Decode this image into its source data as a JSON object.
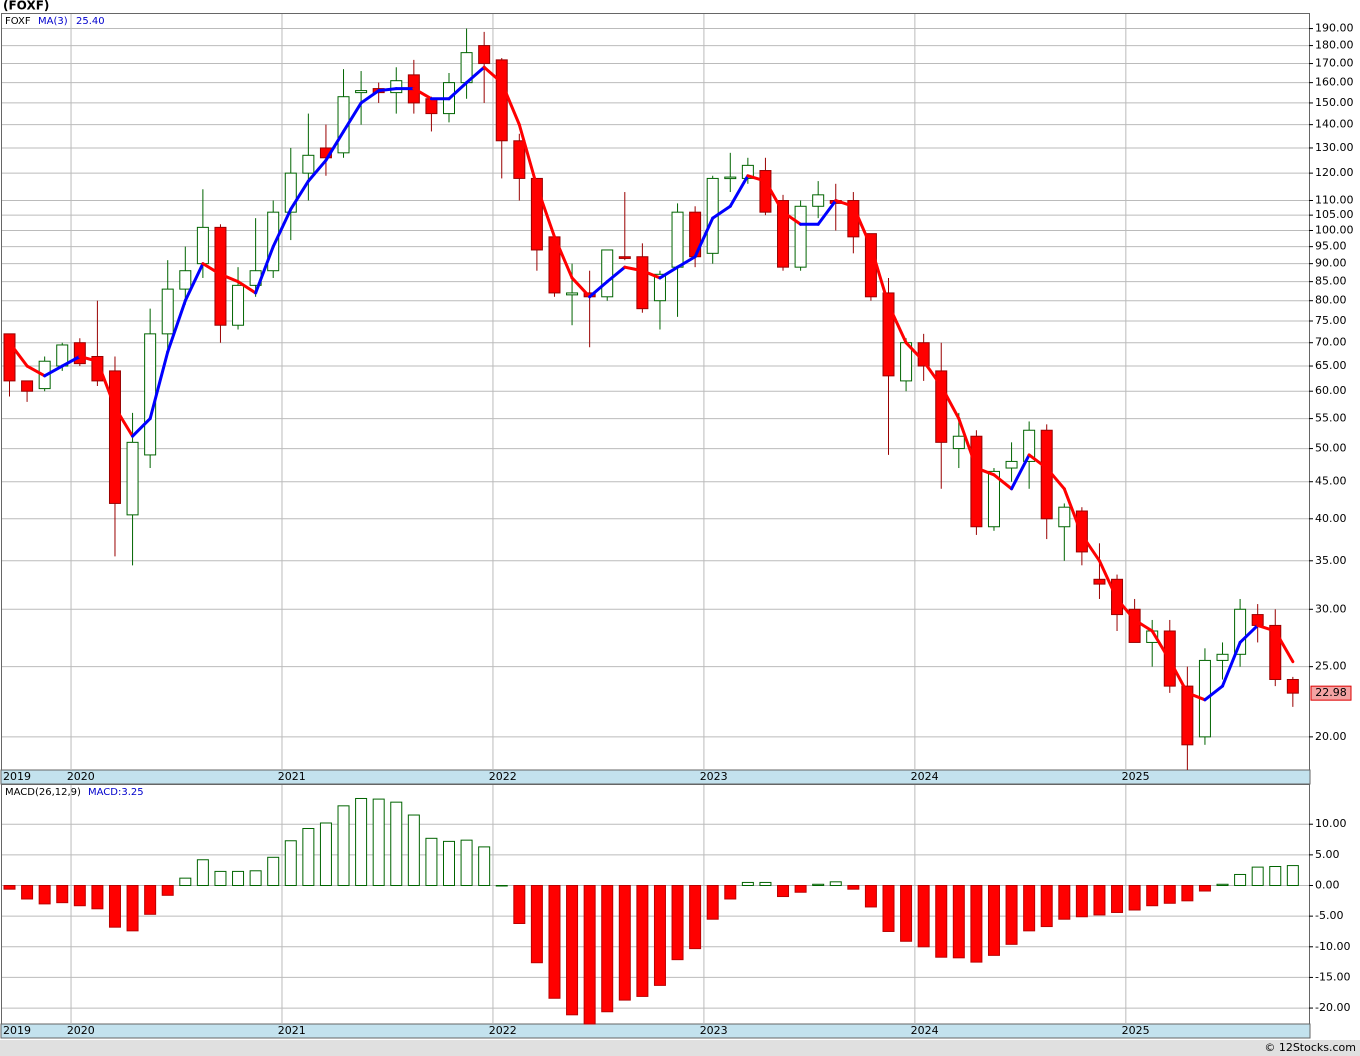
{
  "chart_data": [
    {
      "type": "candlestick",
      "title": "(FOXF)",
      "legend": "FOXF",
      "categories": [
        "2019",
        null,
        null,
        null,
        "2020",
        null,
        null,
        null,
        null,
        null,
        null,
        null,
        null,
        null,
        null,
        null,
        "2021",
        null,
        null,
        null,
        null,
        null,
        null,
        null,
        null,
        null,
        null,
        null,
        "2022",
        null,
        null,
        null,
        null,
        null,
        null,
        null,
        null,
        null,
        null,
        null,
        "2023",
        null,
        null,
        null,
        null,
        null,
        null,
        null,
        null,
        null,
        null,
        null,
        "2024",
        null,
        null,
        null,
        null,
        null,
        null,
        null,
        null,
        null,
        null,
        null,
        "2025",
        null,
        null,
        null,
        null,
        null,
        null,
        null,
        null,
        null
      ],
      "open": [
        72,
        62,
        60.5,
        65,
        70,
        67,
        64,
        40.5,
        49,
        72,
        83,
        90,
        101,
        74,
        84,
        88,
        106,
        120,
        130,
        128,
        155,
        157,
        155,
        164,
        152,
        145,
        160,
        180,
        172,
        133,
        118,
        98,
        81.5,
        82,
        81,
        92,
        92,
        80,
        89,
        106,
        93,
        118,
        118,
        121,
        110,
        89,
        108,
        110,
        110,
        99,
        82,
        62,
        70,
        64,
        50,
        52,
        39,
        47,
        48,
        53,
        39,
        41,
        33,
        33,
        30,
        27,
        28,
        23.5,
        20,
        25.5,
        26,
        29.5,
        28.5,
        24
      ],
      "high": [
        72,
        62,
        67,
        70,
        71,
        80,
        67,
        56,
        78,
        91,
        95,
        114,
        102,
        89,
        104,
        110,
        130,
        145,
        140,
        167,
        166,
        160,
        168,
        172,
        153,
        165,
        190,
        188,
        173,
        136,
        118,
        99,
        90,
        88,
        94,
        113,
        96,
        88,
        109,
        108,
        119,
        128,
        126,
        126,
        112,
        110,
        117,
        116,
        113,
        99,
        86,
        71,
        72,
        70,
        56,
        53,
        47,
        51,
        54.5,
        54,
        42,
        41.5,
        37,
        33.5,
        31,
        29,
        29,
        25,
        26.5,
        27,
        31,
        30.5,
        30,
        24.2
      ],
      "low": [
        59,
        58,
        60,
        64,
        65,
        61,
        35.5,
        34.5,
        47,
        68,
        79,
        86,
        70,
        73,
        81,
        86,
        97,
        110,
        119,
        126,
        140,
        150,
        145,
        145,
        137,
        141,
        152,
        150,
        118,
        110,
        88,
        81,
        74,
        69,
        80,
        91,
        77,
        73,
        76,
        89,
        90,
        113,
        116,
        105,
        88,
        88,
        104,
        100,
        93,
        80,
        49,
        60,
        62,
        44,
        47,
        38,
        38.5,
        45,
        44,
        37.5,
        35,
        34.5,
        31,
        28,
        27,
        25,
        23,
        18,
        19.5,
        24,
        25,
        27,
        23.5,
        22
      ],
      "close": [
        62,
        60,
        66,
        69.5,
        65.5,
        62,
        42,
        51,
        72,
        83,
        88,
        101,
        74,
        84,
        88,
        106,
        120,
        127,
        126,
        153,
        156,
        155,
        161,
        150,
        145,
        160,
        176,
        170,
        133,
        118,
        94,
        82,
        82,
        81,
        94,
        91.5,
        78,
        87,
        106,
        92,
        118,
        118.5,
        123,
        106,
        89,
        108,
        112,
        109,
        98,
        81,
        63,
        70,
        65,
        51,
        52,
        39,
        46.5,
        48,
        53,
        40,
        41.5,
        36,
        32.5,
        29.5,
        27,
        28,
        23.5,
        19.5,
        25.5,
        26,
        30,
        28.5,
        24,
        22.98
      ],
      "up_color": "#006400",
      "down_color": "#ff0000",
      "ma": {
        "name": "MA(3)",
        "label": "25.40",
        "up_color": "#0000ff",
        "down_color": "#ff0000",
        "values": [
          70,
          65,
          63,
          65,
          67,
          66,
          57,
          52,
          55,
          68,
          80,
          90,
          87,
          85,
          82,
          95,
          107,
          117,
          125,
          137,
          150,
          156,
          157,
          157,
          152,
          152,
          160,
          168,
          160,
          140,
          115,
          98,
          86,
          81,
          85,
          89,
          88,
          86,
          89,
          92,
          104,
          108,
          119,
          117,
          106,
          102,
          102,
          110,
          108,
          95,
          79,
          70,
          66,
          61,
          55,
          47,
          46,
          44,
          49,
          47,
          44,
          38,
          35,
          31,
          29,
          28,
          25.5,
          23,
          22.5,
          23.5,
          27,
          28.5,
          28,
          25.4
        ]
      },
      "last_price_label": "22.98",
      "log_y": true,
      "ylim": [
        18,
        199
      ],
      "yticks": [
        {
          "value": 20,
          "label": "20.00"
        },
        {
          "value": 25,
          "label": "25.00"
        },
        {
          "value": 30,
          "label": "30.00"
        },
        {
          "value": 35,
          "label": "35.00"
        },
        {
          "value": 40,
          "label": "40.00"
        },
        {
          "value": 45,
          "label": "45.00"
        },
        {
          "value": 50,
          "label": "50.00"
        },
        {
          "value": 55,
          "label": "55.00"
        },
        {
          "value": 60,
          "label": "60.00"
        },
        {
          "value": 65,
          "label": "65.00"
        },
        {
          "value": 70,
          "label": "70.00"
        },
        {
          "value": 75,
          "label": "75.00"
        },
        {
          "value": 80,
          "label": "80.00"
        },
        {
          "value": 85,
          "label": "85.00"
        },
        {
          "value": 90,
          "label": "90.00"
        },
        {
          "value": 95,
          "label": "95.00"
        },
        {
          "value": 100,
          "label": "100.00"
        },
        {
          "value": 105,
          "label": "105.00"
        },
        {
          "value": 110,
          "label": "110.00"
        },
        {
          "value": 120,
          "label": "120.00"
        },
        {
          "value": 130,
          "label": "130.00"
        },
        {
          "value": 140,
          "label": "140.00"
        },
        {
          "value": 150,
          "label": "150.00"
        },
        {
          "value": 160,
          "label": "160.00"
        },
        {
          "value": 170,
          "label": "170.00"
        },
        {
          "value": 180,
          "label": "180.00"
        },
        {
          "value": 190,
          "label": "190.00"
        }
      ],
      "grid": true
    },
    {
      "type": "bar",
      "title": "MACD(26,12,9)",
      "legend": "MACD:3.25",
      "categories": [
        "2019",
        null,
        null,
        null,
        "2020",
        null,
        null,
        null,
        null,
        null,
        null,
        null,
        null,
        null,
        null,
        null,
        "2021",
        null,
        null,
        null,
        null,
        null,
        null,
        null,
        null,
        null,
        null,
        null,
        "2022",
        null,
        null,
        null,
        null,
        null,
        null,
        null,
        null,
        null,
        null,
        null,
        "2023",
        null,
        null,
        null,
        null,
        null,
        null,
        null,
        null,
        null,
        null,
        null,
        "2024",
        null,
        null,
        null,
        null,
        null,
        null,
        null,
        null,
        null,
        null,
        null,
        "2025",
        null,
        null,
        null,
        null,
        null,
        null,
        null,
        null,
        null
      ],
      "values": [
        -0.6,
        -2.2,
        -3,
        -2.8,
        -3.3,
        -3.8,
        -6.8,
        -7.4,
        -4.7,
        -1.6,
        1.2,
        4.2,
        2.3,
        2.3,
        2.4,
        4.6,
        7.3,
        9.3,
        10.2,
        13,
        14.2,
        14.1,
        13.6,
        11.5,
        7.7,
        7.2,
        7.4,
        6.3,
        0,
        -6.2,
        -12.6,
        -18.4,
        -21.1,
        -22.6,
        -20.6,
        -18.7,
        -18.1,
        -16.3,
        -12.1,
        -10.3,
        -5.5,
        -2.2,
        0.5,
        0.5,
        -1.8,
        -1.1,
        0.2,
        0.6,
        -0.6,
        -3.5,
        -7.5,
        -9.1,
        -10,
        -11.7,
        -11.8,
        -12.5,
        -11.4,
        -9.6,
        -7.4,
        -6.7,
        -5.5,
        -5.1,
        -4.8,
        -4.4,
        -4,
        -3.3,
        -2.9,
        -2.5,
        -0.9,
        0.2,
        1.8,
        3,
        3.1,
        3.25
      ],
      "up_color": "#006400",
      "down_color": "#ff0000",
      "ylim": [
        -22.6,
        16.4
      ],
      "yticks": [
        {
          "value": 10,
          "label": "10.00"
        },
        {
          "value": 5,
          "label": "5.00"
        },
        {
          "value": 0,
          "label": "0.00"
        },
        {
          "value": -5,
          "label": "-5.00"
        },
        {
          "value": -10,
          "label": "-10.00"
        },
        {
          "value": -15,
          "label": "-15.00"
        },
        {
          "value": -20,
          "label": "-20.00"
        }
      ],
      "grid": true
    }
  ],
  "footer": "© 12Stocks.com"
}
